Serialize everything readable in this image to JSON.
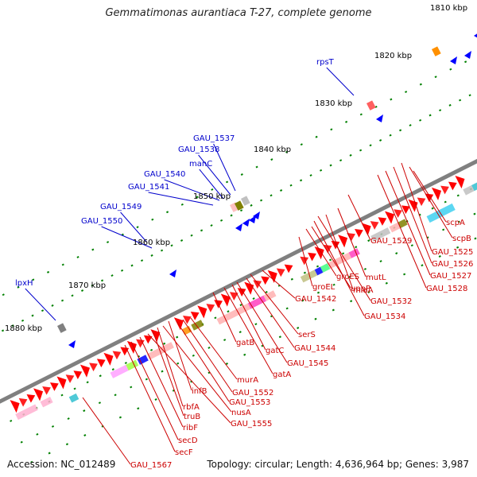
{
  "title": "Gemmatimonas aurantiaca T-27, complete genome",
  "accession": "Accession: NC_012489",
  "summary": "Topology: circular; Length: 4,636,964 bp; Genes: 3,987",
  "colors": {
    "forward_gene": "#ff0000",
    "reverse_gene": "#0000ff",
    "upper_labels": "#0000cc",
    "lower_labels": "#cc0000",
    "backbone": "#808080",
    "ticks": "#008000"
  },
  "kbp_labels": [
    "1810 kbp",
    "1820 kbp",
    "1830 kbp",
    "1840 kbp",
    "1850 kbp",
    "1860 kbp",
    "1870 kbp",
    "1880 kbp"
  ],
  "upper_genes": [
    "rpsT",
    "GAU_1537",
    "GAU_1538",
    "manC",
    "GAU_1540",
    "GAU_1541",
    "GAU_1549",
    "GAU_1550",
    "lpxH"
  ],
  "lower_genes": [
    "scpA",
    "scpB",
    "GAU_1525",
    "GAU_1526",
    "GAU_1527",
    "GAU_1528",
    "GAU_1529",
    "mutL",
    "miaA",
    "GAU_1532",
    "GAU_1534",
    "uppP",
    "groES",
    "groEL",
    "GAU_1542",
    "serS",
    "GAU_1544",
    "GAU_1545",
    "gatC",
    "gatA",
    "gatB",
    "murA",
    "GAU_1552",
    "GAU_1553",
    "infB",
    "nusA",
    "rbfA",
    "truB",
    "GAU_1555",
    "ribF",
    "secD",
    "secF",
    "GAU_1567"
  ]
}
